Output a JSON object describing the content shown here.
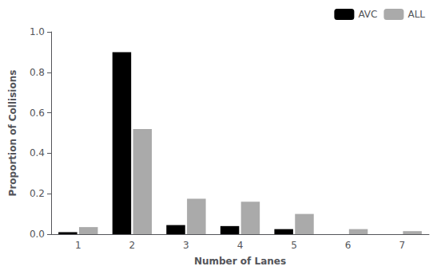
{
  "chart_data": {
    "type": "bar",
    "xlabel": "Number of Lanes",
    "ylabel": "Proportion of Collisions",
    "categories": [
      "1",
      "2",
      "3",
      "4",
      "5",
      "6",
      "7"
    ],
    "series": [
      {
        "name": "AVC",
        "color": "#000000",
        "values": [
          0.01,
          0.9,
          0.045,
          0.04,
          0.025,
          0.0,
          0.0
        ]
      },
      {
        "name": "ALL",
        "color": "#aaaaaa",
        "values": [
          0.035,
          0.52,
          0.175,
          0.16,
          0.1,
          0.025,
          0.015
        ]
      }
    ],
    "ylim": [
      0,
      1.0
    ],
    "yticks": [
      {
        "value": 0,
        "label": "0.0"
      },
      0.2,
      0.4,
      0.6,
      0.8,
      {
        "value": 1,
        "label": "1.0"
      }
    ],
    "grid": false,
    "legend": "upper right"
  }
}
